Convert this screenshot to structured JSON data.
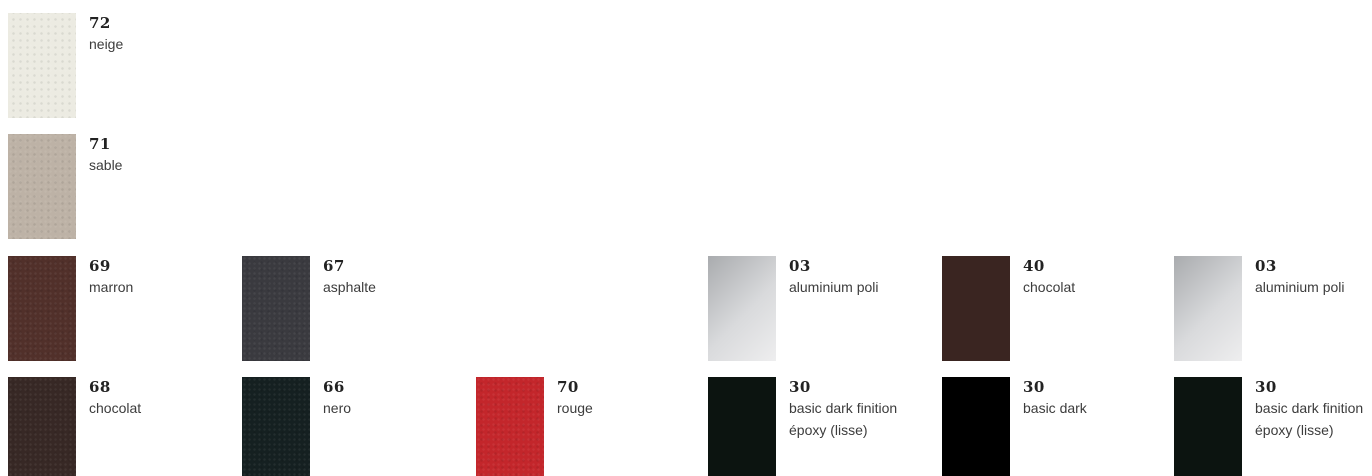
{
  "swatches": [
    {
      "code": "72",
      "name": "neige",
      "color": "#ecebe2"
    },
    {
      "code": "71",
      "name": "sable",
      "color": "#bdb2a6"
    },
    {
      "code": "69",
      "name": "marron",
      "color": "#51302a"
    },
    {
      "code": "67",
      "name": "asphalte",
      "color": "#3a3a3f"
    },
    {
      "code": "03",
      "name": "aluminium poli",
      "color": "#c8c9cb"
    },
    {
      "code": "40",
      "name": "chocolat",
      "color": "#3a2521"
    },
    {
      "code": "03",
      "name": "aluminium poli",
      "color": "#c8c9cb"
    },
    {
      "code": "68",
      "name": "chocolat",
      "color": "#372825"
    },
    {
      "code": "66",
      "name": "nero",
      "color": "#152021"
    },
    {
      "code": "70",
      "name": "rouge",
      "color": "#c3262b"
    },
    {
      "code": "30",
      "name": "basic dark finition",
      "name2": "époxy (lisse)",
      "color": "#0c1410"
    },
    {
      "code": "30",
      "name": "basic dark",
      "color": "#000000"
    },
    {
      "code": "30",
      "name": "basic dark finition",
      "name2": "époxy (lisse)",
      "color": "#0c1410"
    }
  ]
}
